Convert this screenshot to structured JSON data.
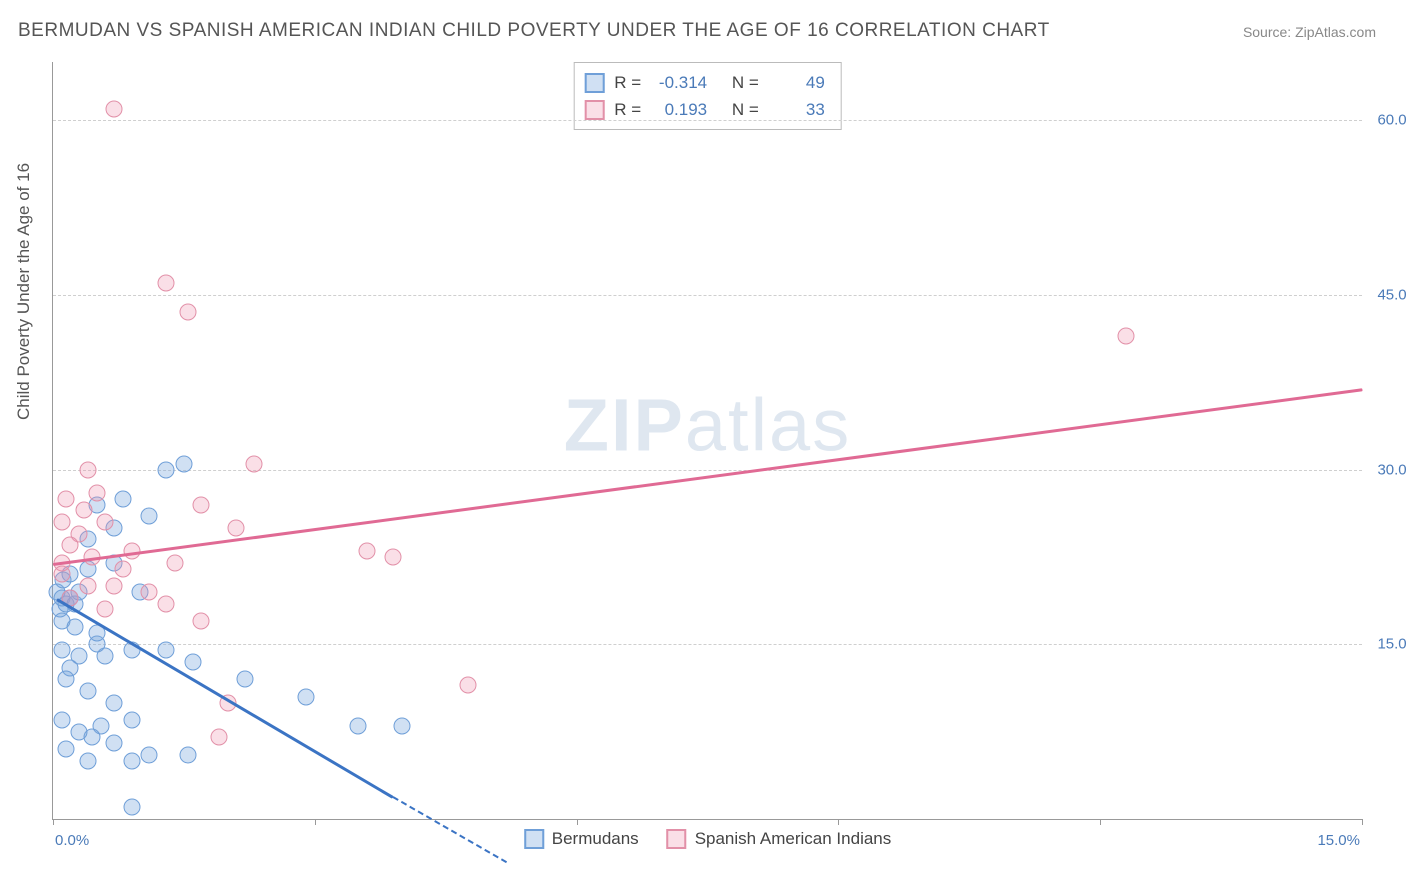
{
  "title": "BERMUDAN VS SPANISH AMERICAN INDIAN CHILD POVERTY UNDER THE AGE OF 16 CORRELATION CHART",
  "source": "Source: ZipAtlas.com",
  "ylabel": "Child Poverty Under the Age of 16",
  "watermark_part1": "ZIP",
  "watermark_part2": "atlas",
  "chart": {
    "type": "scatter",
    "background_color": "#ffffff",
    "grid_color": "#cfcfcf",
    "axis_color": "#999999",
    "text_color": "#555555",
    "value_color": "#4a7ab8",
    "xlim": [
      0,
      15
    ],
    "ylim": [
      0,
      65
    ],
    "x_tick_positions": [
      0,
      3,
      6,
      9,
      12,
      15
    ],
    "x_tick_visible_labels": {
      "first": "0.0%",
      "last": "15.0%"
    },
    "y_ticks": [
      {
        "value": 15,
        "label": "15.0%"
      },
      {
        "value": 30,
        "label": "30.0%"
      },
      {
        "value": 45,
        "label": "45.0%"
      },
      {
        "value": 60,
        "label": "60.0%"
      }
    ],
    "marker_radius": 8.5,
    "marker_border_width": 1.5,
    "line_width": 2.5,
    "series": [
      {
        "id": "bermudans",
        "label": "Bermudans",
        "fill": "rgba(120,165,220,0.35)",
        "stroke": "#6f9fd8",
        "line_color": "#3b74c4",
        "R": "-0.314",
        "N": "49",
        "trend": {
          "x1": 0.05,
          "y1": 19.0,
          "x2": 3.9,
          "y2": 2.0,
          "dash_x2": 5.2,
          "dash_y2": -3.6
        },
        "points": [
          [
            0.05,
            19.5
          ],
          [
            0.08,
            18.0
          ],
          [
            0.1,
            19.0
          ],
          [
            0.12,
            20.5
          ],
          [
            0.1,
            17.0
          ],
          [
            0.15,
            18.5
          ],
          [
            0.2,
            19.0
          ],
          [
            0.25,
            18.5
          ],
          [
            0.3,
            19.5
          ],
          [
            0.1,
            14.5
          ],
          [
            0.3,
            14.0
          ],
          [
            0.6,
            14.0
          ],
          [
            0.9,
            14.5
          ],
          [
            0.5,
            15.0
          ],
          [
            0.2,
            13.0
          ],
          [
            0.15,
            12.0
          ],
          [
            0.4,
            11.0
          ],
          [
            0.7,
            10.0
          ],
          [
            0.1,
            8.5
          ],
          [
            0.9,
            8.5
          ],
          [
            0.55,
            8.0
          ],
          [
            0.45,
            7.0
          ],
          [
            0.3,
            7.5
          ],
          [
            0.15,
            6.0
          ],
          [
            0.7,
            6.5
          ],
          [
            0.4,
            5.0
          ],
          [
            0.9,
            5.0
          ],
          [
            1.1,
            5.5
          ],
          [
            1.55,
            5.5
          ],
          [
            0.4,
            24.0
          ],
          [
            0.5,
            27.0
          ],
          [
            0.7,
            25.0
          ],
          [
            0.8,
            27.5
          ],
          [
            1.3,
            30.0
          ],
          [
            1.5,
            30.5
          ],
          [
            1.3,
            14.5
          ],
          [
            1.6,
            13.5
          ],
          [
            2.2,
            12.0
          ],
          [
            2.9,
            10.5
          ],
          [
            3.5,
            8.0
          ],
          [
            4.0,
            8.0
          ],
          [
            0.9,
            1.0
          ],
          [
            0.2,
            21.0
          ],
          [
            0.4,
            21.5
          ],
          [
            0.25,
            16.5
          ],
          [
            0.5,
            16.0
          ],
          [
            1.1,
            26.0
          ],
          [
            0.7,
            22.0
          ],
          [
            1.0,
            19.5
          ]
        ]
      },
      {
        "id": "spanish_american_indians",
        "label": "Spanish American Indians",
        "fill": "rgba(240,150,175,0.30)",
        "stroke": "#e290a8",
        "line_color": "#e06a94",
        "R": "0.193",
        "N": "33",
        "trend": {
          "x1": 0.0,
          "y1": 22.0,
          "x2": 15.0,
          "y2": 37.0
        },
        "points": [
          [
            0.7,
            61.0
          ],
          [
            1.3,
            46.0
          ],
          [
            1.55,
            43.5
          ],
          [
            12.3,
            41.5
          ],
          [
            2.3,
            30.5
          ],
          [
            1.7,
            27.0
          ],
          [
            0.15,
            27.5
          ],
          [
            0.5,
            28.0
          ],
          [
            0.35,
            26.5
          ],
          [
            0.6,
            25.5
          ],
          [
            0.3,
            24.5
          ],
          [
            3.6,
            23.0
          ],
          [
            3.9,
            22.5
          ],
          [
            0.1,
            22.0
          ],
          [
            0.45,
            22.5
          ],
          [
            0.8,
            21.5
          ],
          [
            1.1,
            19.5
          ],
          [
            1.3,
            18.5
          ],
          [
            1.7,
            17.0
          ],
          [
            0.1,
            25.5
          ],
          [
            2.1,
            25.0
          ],
          [
            0.2,
            19.0
          ],
          [
            0.6,
            18.0
          ],
          [
            2.0,
            10.0
          ],
          [
            1.9,
            7.0
          ],
          [
            4.75,
            11.5
          ],
          [
            0.4,
            30.0
          ],
          [
            0.2,
            23.5
          ],
          [
            0.9,
            23.0
          ],
          [
            0.4,
            20.0
          ],
          [
            0.7,
            20.0
          ],
          [
            1.4,
            22.0
          ],
          [
            0.1,
            21.0
          ]
        ]
      }
    ]
  },
  "stats_box_labels": {
    "R": "R =",
    "N": "N ="
  },
  "legend": {
    "items": [
      {
        "series": "bermudans"
      },
      {
        "series": "spanish_american_indians"
      }
    ]
  }
}
